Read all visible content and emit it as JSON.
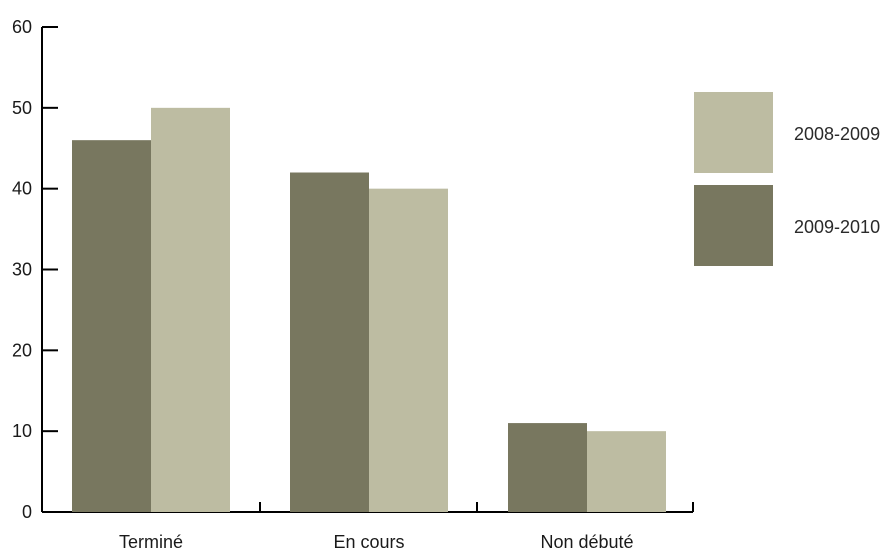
{
  "chart_data": {
    "type": "bar",
    "categories": [
      "Terminé",
      "En cours",
      "Non débuté"
    ],
    "series": [
      {
        "name": "2009-2010",
        "values": [
          46,
          42,
          11
        ],
        "color": "#78775f"
      },
      {
        "name": "2008-2009",
        "values": [
          50,
          40,
          10
        ],
        "color": "#bdbca2"
      }
    ],
    "legend": [
      {
        "name": "2008-2009",
        "color": "#bdbca2"
      },
      {
        "name": "2009-2010",
        "color": "#78775f"
      }
    ],
    "y_ticks": [
      "0",
      "10",
      "20",
      "30",
      "40",
      "50",
      "60"
    ],
    "ylim": [
      0,
      60
    ],
    "legend_position": "right",
    "grid": false
  }
}
